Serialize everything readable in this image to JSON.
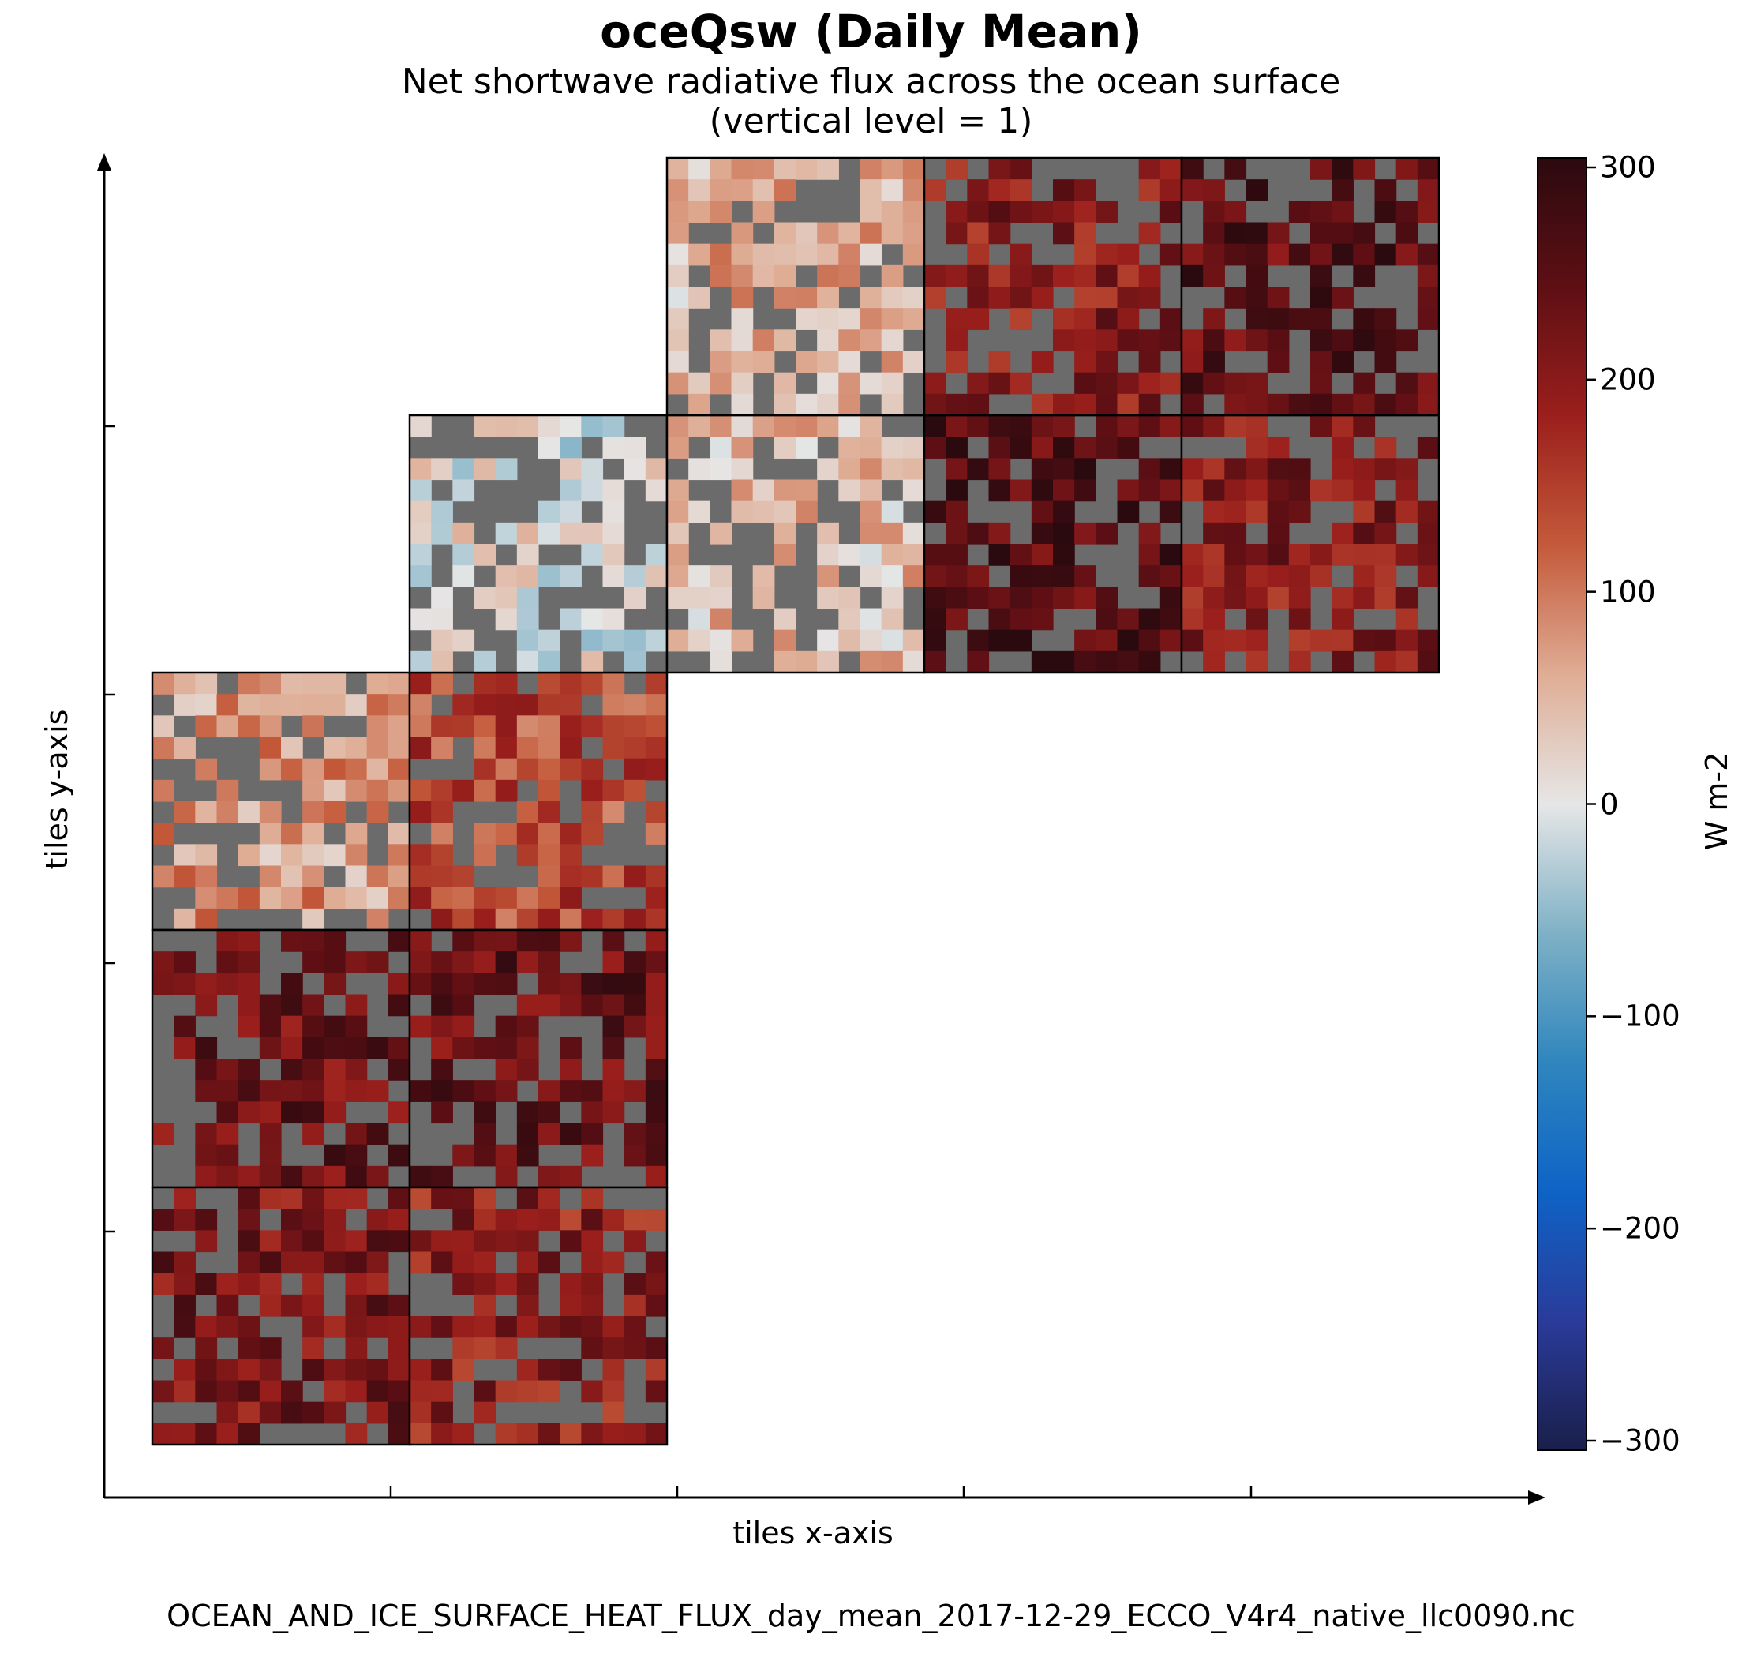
{
  "chart_data": {
    "type": "heatmap",
    "title": "oceQsw (Daily Mean)",
    "subtitle": [
      "Net shortwave radiative flux across the ocean surface",
      "(vertical level = 1)"
    ],
    "xlabel": "tiles x-axis",
    "ylabel": "tiles y-axis",
    "footer": "OCEAN_AND_ICE_SURFACE_HEAT_FLUX_day_mean_2017-12-29_ECCO_V4r4_native_llc0090.nc",
    "colorbar": {
      "label": "W m-2",
      "range": [
        -300,
        300
      ],
      "ticks": [
        "300",
        "200",
        "100",
        "0",
        "−100",
        "−200",
        "−300"
      ],
      "tick_values": [
        300,
        200,
        100,
        0,
        -100,
        -200,
        -300
      ],
      "colormap": [
        "#1a1f4a",
        "#2a3b9a",
        "#0e63c6",
        "#2f86bd",
        "#7fb1c6",
        "#e6e6e6",
        "#dfad95",
        "#c45a3a",
        "#9b1f1c",
        "#5e0f14",
        "#2b0a0f"
      ]
    },
    "land_color": "#6b6b6b",
    "tiles": [
      {
        "col": 0,
        "row": 2,
        "mean_value": 70
      },
      {
        "col": 0,
        "row": 3,
        "mean_value": 230
      },
      {
        "col": 0,
        "row": 4,
        "mean_value": 215
      },
      {
        "col": 1,
        "row": 2,
        "mean_value": 140
      },
      {
        "col": 1,
        "row": 3,
        "mean_value": 235
      },
      {
        "col": 1,
        "row": 4,
        "mean_value": 190
      },
      {
        "col": 1,
        "row": 1,
        "mean_value": 0
      },
      {
        "col": 2,
        "row": 1,
        "mean_value": 40
      },
      {
        "col": 2,
        "row": 0,
        "mean_value": 50
      },
      {
        "col": 3,
        "row": 1,
        "mean_value": 255
      },
      {
        "col": 3,
        "row": 0,
        "mean_value": 200
      },
      {
        "col": 4,
        "row": 1,
        "mean_value": 200
      },
      {
        "col": 4,
        "row": 0,
        "mean_value": 245
      }
    ]
  }
}
